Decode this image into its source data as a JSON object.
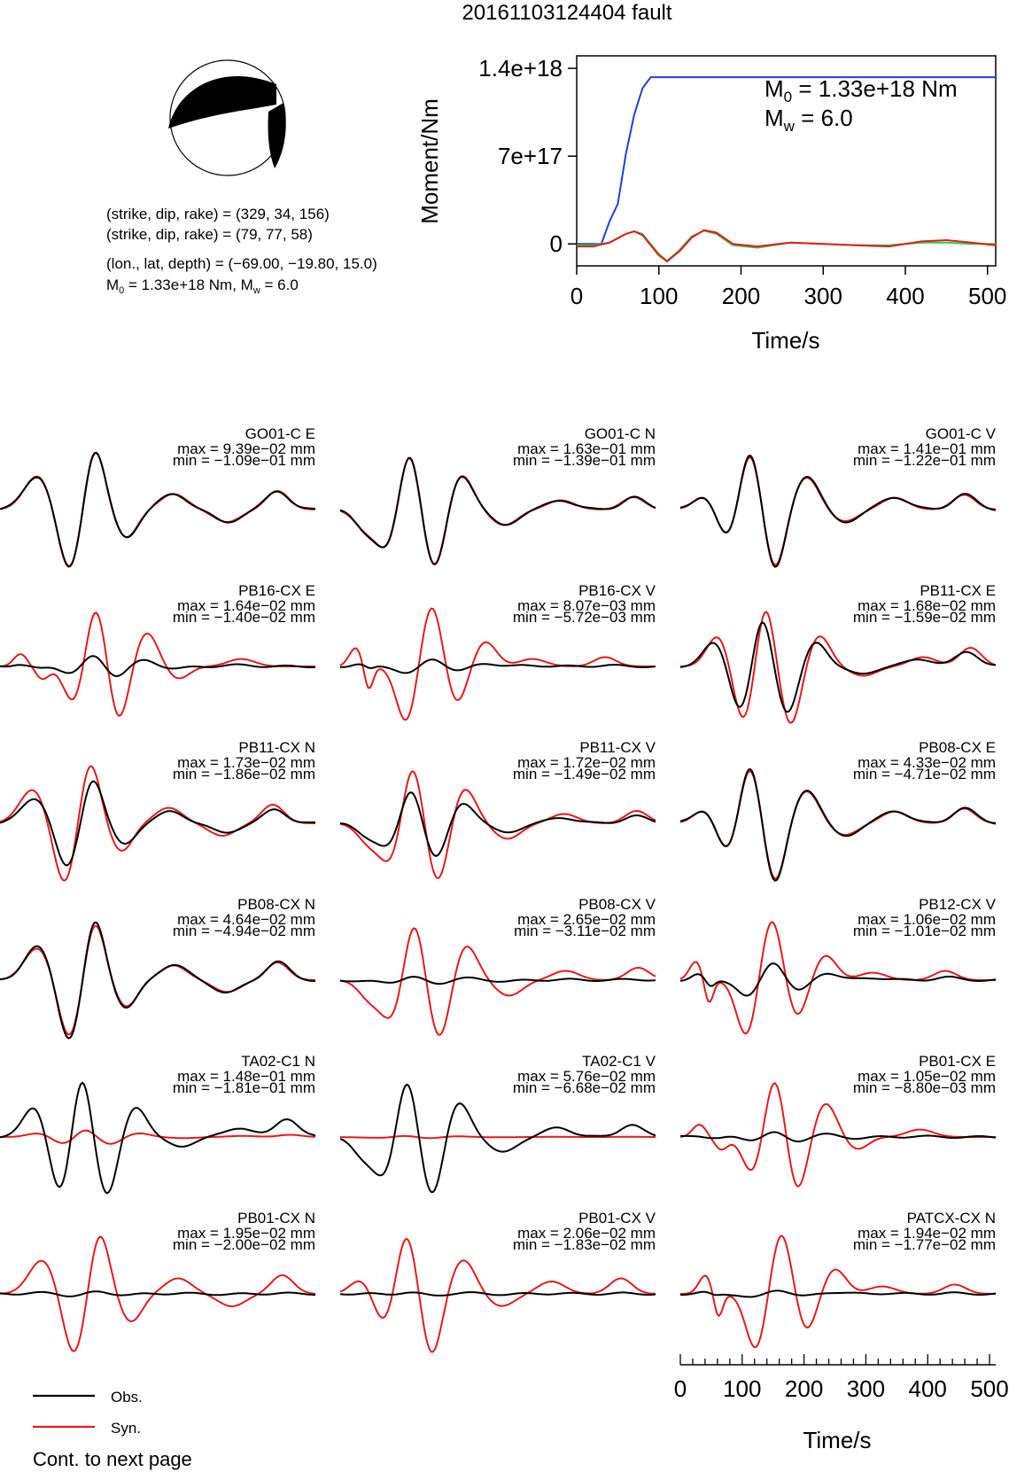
{
  "title": "20161103124404 fault",
  "colors": {
    "obs": "#000000",
    "syn": "#e41a1c",
    "moment_rate": "#1f3fd8",
    "green": "#2ecc40",
    "beachball_fill": "#000000"
  },
  "mechanism": {
    "line1": "(strike, dip, rake) = (329, 34, 156)",
    "line2": "(strike, dip, rake) = (79, 77, 58)",
    "line3": "(lon., lat, depth) = (−69.00, −19.80, 15.0)",
    "m0_prefix": "M",
    "m0_sub": "0",
    "m0_rest": " = 1.33e+18 Nm, M",
    "mw_sub": "w",
    "mw_rest": " = 6.0"
  },
  "moment_chart": {
    "ylabel": "Moment/Nm",
    "xlabel": "Time/s",
    "m0_prefix": "M",
    "m0_sub": "0",
    "m0_rest": " = 1.33e+18 Nm",
    "mw_prefix": "M",
    "mw_sub": "w",
    "mw_rest": " = 6.0"
  },
  "chart_data": [
    {
      "type": "line",
      "name": "moment-chart",
      "x_ticks": [
        0,
        100,
        200,
        300,
        400,
        500
      ],
      "y_tick_labels": [
        "1.4e+18",
        "7e+17",
        "0"
      ],
      "y_tick_values": [
        1.4e+18,
        7e+17,
        0
      ],
      "xlim": [
        0,
        510
      ],
      "ylim": [
        -1.75e+17,
        1.5e+18
      ],
      "series": [
        {
          "color": "#1f3fd8",
          "x": [
            0,
            30,
            40,
            50,
            60,
            70,
            80,
            90,
            510
          ],
          "y": [
            0,
            0,
            1.8e+17,
            3.2e+17,
            7.2e+17,
            1.03e+18,
            1.24e+18,
            1.33e+18,
            1.33e+18
          ]
        },
        {
          "color": "#2ecc40",
          "x": [
            0,
            20,
            40,
            60,
            70,
            80,
            100,
            110,
            125,
            140,
            155,
            170,
            190,
            220,
            260,
            300,
            340,
            380,
            420,
            450,
            480,
            510
          ],
          "y": [
            -1e+16,
            -1e+16,
            1e+16,
            8e+16,
            1e+17,
            8e+16,
            -8e+16,
            -1.35e+17,
            -5e+16,
            6e+16,
            1.05e+17,
            8e+16,
            -1e+16,
            -3e+16,
            1e+16,
            0,
            -1e+16,
            -1e+16,
            1e+16,
            1e+16,
            0,
            0
          ]
        },
        {
          "color": "#e41a1c",
          "x": [
            0,
            20,
            40,
            60,
            70,
            80,
            100,
            110,
            125,
            140,
            155,
            170,
            190,
            220,
            260,
            300,
            340,
            380,
            420,
            450,
            480,
            510
          ],
          "y": [
            -2e+16,
            -2e+16,
            1e+16,
            8e+16,
            1e+17,
            7e+16,
            -9e+16,
            -1.4e+17,
            -6e+16,
            5e+16,
            1.1e+17,
            9e+16,
            0,
            -2e+16,
            1e+16,
            0,
            -1e+16,
            -2e+16,
            2e+16,
            3e+16,
            1e+16,
            -1e+16
          ]
        }
      ]
    },
    {
      "type": "line",
      "name": "waveforms",
      "xlabel": "Time/s",
      "x_ticks": [
        0,
        100,
        200,
        300,
        400,
        500
      ],
      "xlim": [
        0,
        510
      ],
      "legend": [
        {
          "label": "Obs.",
          "color": "#000000"
        },
        {
          "label": "Syn.",
          "color": "#e41a1c"
        }
      ],
      "footer": "Cont. to next page",
      "traces": [
        {
          "station": "GO01-C E",
          "max": "max = 9.39e−02 mm",
          "min": "min = −1.09e−01 mm",
          "obs_amp": 1.0,
          "syn_amp": 1.0,
          "pat": 0,
          "phase": 0
        },
        {
          "station": "GO01-C N",
          "max": "max = 1.63e−01 mm",
          "min": "min = −1.39e−01 mm",
          "obs_amp": 1.0,
          "syn_amp": 1.0,
          "pat": 1,
          "phase": 0
        },
        {
          "station": "GO01-C V",
          "max": "max = 1.41e−01 mm",
          "min": "min = −1.22e−01 mm",
          "obs_amp": 1.0,
          "syn_amp": 0.95,
          "pat": 2,
          "phase": 0
        },
        {
          "station": "PB16-CX E",
          "max": "max = 1.64e−02 mm",
          "min": "min = −1.40e−02 mm",
          "obs_amp": 0.18,
          "syn_amp": 1.0,
          "pat": 3,
          "phase": 1
        },
        {
          "station": "PB16-CX V",
          "max": "max = 8.07e−03 mm",
          "min": "min = −5.72e−03 mm",
          "obs_amp": 0.12,
          "syn_amp": 1.0,
          "pat": 4,
          "phase": 2
        },
        {
          "station": "PB11-CX E",
          "max": "max = 1.68e−02 mm",
          "min": "min = −1.59e−02 mm",
          "obs_amp": 0.8,
          "syn_amp": 1.0,
          "pat": 5,
          "phase": 3
        },
        {
          "station": "PB11-CX N",
          "max": "max = 1.73e−02 mm",
          "min": "min = −1.86e−02 mm",
          "obs_amp": 0.75,
          "syn_amp": 1.0,
          "pat": 0,
          "phase": 4
        },
        {
          "station": "PB11-CX V",
          "max": "max = 1.72e−02 mm",
          "min": "min = −1.49e−02 mm",
          "obs_amp": 0.6,
          "syn_amp": 1.0,
          "pat": 1,
          "phase": 5
        },
        {
          "station": "PB08-CX E",
          "max": "max = 4.33e−02 mm",
          "min": "min = −4.71e−02 mm",
          "obs_amp": 1.0,
          "syn_amp": 0.95,
          "pat": 2,
          "phase": 0
        },
        {
          "station": "PB08-CX N",
          "max": "max = 4.64e−02 mm",
          "min": "min = −4.94e−02 mm",
          "obs_amp": 1.0,
          "syn_amp": 0.95,
          "pat": 0,
          "phase": 0
        },
        {
          "station": "PB08-CX V",
          "max": "max = 2.65e−02 mm",
          "min": "min = −3.11e−02 mm",
          "obs_amp": 0.06,
          "syn_amp": 1.0,
          "pat": 1,
          "phase": 1
        },
        {
          "station": "PB12-CX V",
          "max": "max = 1.06e−02 mm",
          "min": "min = −1.01e−02 mm",
          "obs_amp": 0.3,
          "syn_amp": 1.0,
          "pat": 4,
          "phase": 2
        },
        {
          "station": "TA02-C1 N",
          "max": "max = 1.48e−01 mm",
          "min": "min = −1.81e−01 mm",
          "obs_amp": 1.0,
          "syn_amp": 0.12,
          "pat": 5,
          "phase": 3
        },
        {
          "station": "TA02-C1 V",
          "max": "max = 5.76e−02 mm",
          "min": "min = −6.68e−02 mm",
          "obs_amp": 1.0,
          "syn_amp": 0.02,
          "pat": 1,
          "phase": 4
        },
        {
          "station": "PB01-CX E",
          "max": "max = 1.05e−02 mm",
          "min": "min = −8.80e−03 mm",
          "obs_amp": 0.08,
          "syn_amp": 1.0,
          "pat": 3,
          "phase": 5
        },
        {
          "station": "PB01-CX N",
          "max": "max = 1.95e−02 mm",
          "min": "min = −2.00e−02 mm",
          "obs_amp": 0.03,
          "syn_amp": 1.0,
          "pat": 0,
          "phase": 1
        },
        {
          "station": "PB01-CX V",
          "max": "max = 2.06e−02 mm",
          "min": "min = −1.83e−02 mm",
          "obs_amp": 0.03,
          "syn_amp": 1.0,
          "pat": 2,
          "phase": 2
        },
        {
          "station": "PATCX-CX N",
          "max": "max = 1.94e−02 mm",
          "min": "min = −1.77e−02 mm",
          "obs_amp": 0.07,
          "syn_amp": 1.0,
          "pat": 4,
          "phase": 3
        }
      ]
    }
  ]
}
